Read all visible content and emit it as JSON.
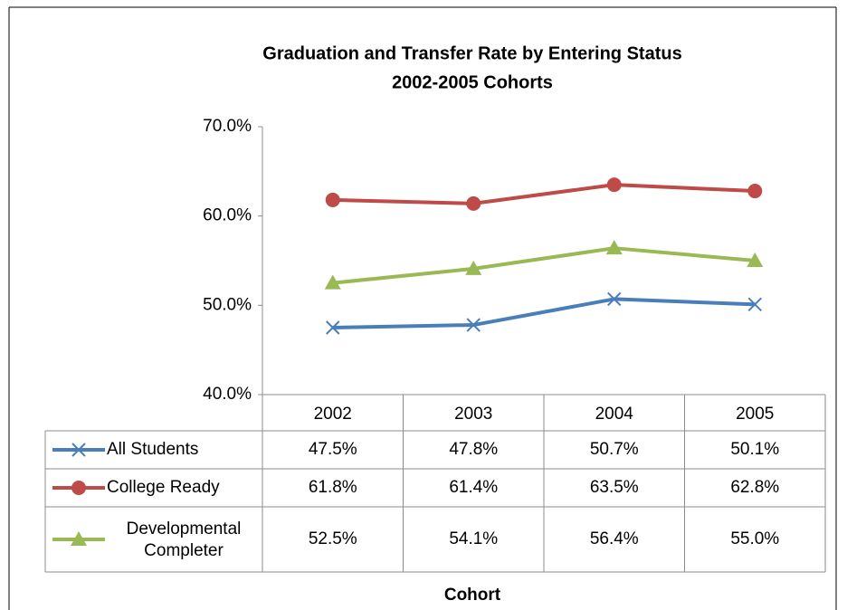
{
  "chart_data": {
    "type": "line",
    "title": "Graduation and Transfer Rate by Entering Status",
    "subtitle": "2002-2005  Cohorts",
    "x_label": "Cohort",
    "categories": [
      "2002",
      "2003",
      "2004",
      "2005"
    ],
    "series": [
      {
        "name": "All Students",
        "color": "#4a7ebb",
        "marker": "x",
        "values": [
          47.5,
          47.8,
          50.7,
          50.1
        ],
        "value_labels": [
          "47.5%",
          "47.8%",
          "50.7%",
          "50.1%"
        ]
      },
      {
        "name": "College Ready",
        "color": "#be4b48",
        "marker": "circle",
        "values": [
          61.8,
          61.4,
          63.5,
          62.8
        ],
        "value_labels": [
          "61.8%",
          "61.4%",
          "63.5%",
          "62.8%"
        ]
      },
      {
        "name": "Developmental Completer",
        "color": "#98b954",
        "marker": "triangle",
        "values": [
          52.5,
          54.1,
          56.4,
          55.0
        ],
        "value_labels": [
          "52.5%",
          "54.1%",
          "56.4%",
          "55.0%"
        ]
      }
    ],
    "ylim": [
      40,
      70
    ],
    "yticks": [
      {
        "value": 40,
        "label": "40.0%"
      },
      {
        "value": 50,
        "label": "50.0%"
      },
      {
        "value": 60,
        "label": "60.0%"
      },
      {
        "value": 70,
        "label": "70.0%"
      }
    ],
    "grid": false
  }
}
